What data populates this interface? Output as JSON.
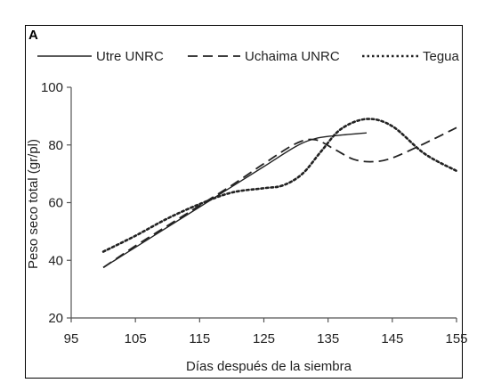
{
  "panel_label": "A",
  "chart_data": {
    "type": "line",
    "xlabel": "Días después de la siembra",
    "ylabel": "Peso seco total (gr/pl)",
    "xlim": [
      95,
      155
    ],
    "ylim": [
      20,
      100
    ],
    "xticks": [
      95,
      105,
      115,
      125,
      135,
      145,
      155
    ],
    "yticks": [
      20,
      40,
      60,
      80,
      100
    ],
    "legend_position": "top",
    "grid": false,
    "series": [
      {
        "name": "Utre UNRC",
        "style": "solid",
        "color": "#222222",
        "x": [
          100,
          105,
          110,
          115,
          120,
          125,
          130,
          133,
          136,
          141
        ],
        "y": [
          37.5,
          44.5,
          51.5,
          58.5,
          65.5,
          72.5,
          79.5,
          82.2,
          83.2,
          84.2
        ]
      },
      {
        "name": "Uchaima UNRC",
        "style": "dashed",
        "color": "#222222",
        "x": [
          100,
          105,
          110,
          115,
          120,
          125,
          130,
          133,
          136,
          139,
          142,
          145,
          150,
          155
        ],
        "y": [
          37.5,
          45,
          52,
          59,
          66,
          73.5,
          80.5,
          81.8,
          78.5,
          75,
          74.2,
          75.5,
          80.5,
          86
        ]
      },
      {
        "name": "Tegua",
        "style": "dotted",
        "color": "#222222",
        "x": [
          100,
          105,
          110,
          115,
          120,
          125,
          128,
          131,
          134,
          137,
          141,
          145,
          150,
          155
        ],
        "y": [
          43,
          48.5,
          54.5,
          59.5,
          63.5,
          65,
          66,
          70,
          78,
          85.5,
          89,
          86.5,
          77,
          71
        ]
      }
    ]
  }
}
